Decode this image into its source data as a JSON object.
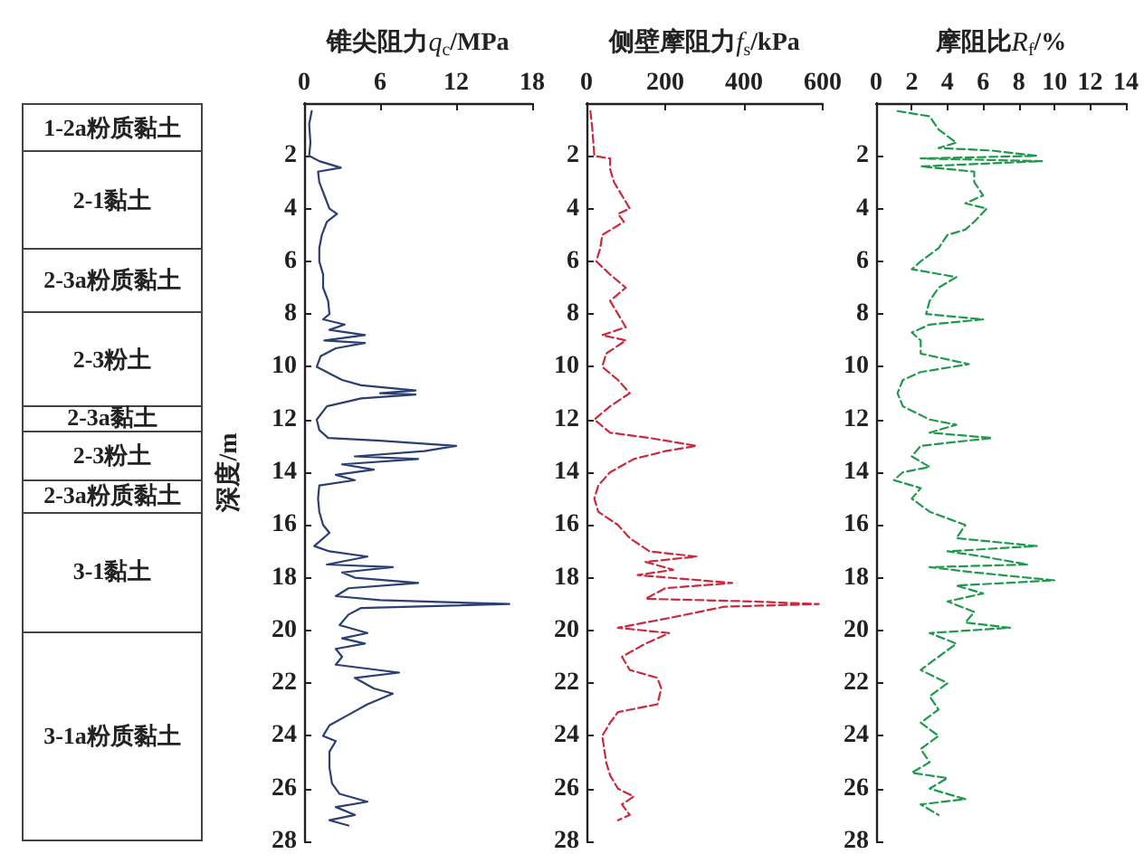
{
  "chart_data": [
    {
      "type": "other",
      "annotations": [
        "1-2a粉质黏土",
        "2-1黏土",
        "2-3a粉质黏土",
        "2-3粉土",
        "2-3a黏土",
        "2-3粉土",
        "2-3a粉质黏土",
        "3-1黏土",
        "3-1a粉质黏土"
      ]
    },
    {
      "type": "line",
      "orientation": "horizontal",
      "xlabel": "锥尖阻力q$_{c}$/MPa",
      "ylabel": "深度/m",
      "xlim": [
        0,
        18
      ],
      "xticks": [
        0,
        6,
        12,
        18
      ],
      "ylim": [
        28,
        0
      ],
      "yticks": [
        2,
        4,
        6,
        8,
        10,
        12,
        14,
        16,
        18,
        20,
        22,
        24,
        26,
        28
      ],
      "color": "#2b3f73",
      "line_style": "solid",
      "marker": "none",
      "grid": false,
      "x": [
        0.3,
        0.8,
        1.5,
        2.0,
        2.2,
        2.45,
        2.6,
        3.0,
        3.5,
        4.0,
        4.2,
        4.5,
        5.0,
        5.5,
        6.0,
        6.5,
        7.0,
        7.5,
        8.0,
        8.2,
        8.4,
        8.6,
        8.8,
        9.0,
        9.1,
        9.3,
        9.6,
        10.0,
        10.3,
        10.5,
        10.7,
        10.9,
        11.0,
        11.05,
        11.2,
        11.5,
        12.0,
        12.4,
        12.7,
        12.8,
        13.0,
        13.2,
        13.4,
        13.5,
        13.7,
        13.9,
        14.1,
        14.3,
        14.5,
        15.0,
        15.5,
        16.0,
        16.3,
        16.8,
        17.0,
        17.2,
        17.5,
        17.6,
        17.8,
        18.0,
        18.2,
        18.4,
        18.7,
        18.85,
        19.0,
        19.15,
        19.4,
        19.8,
        20.1,
        20.3,
        20.5,
        20.7,
        21.0,
        21.3,
        21.6,
        21.8,
        22.2,
        22.4,
        22.8,
        23.2,
        23.6,
        24.0,
        24.2,
        24.6,
        25.2,
        25.8,
        26.2,
        26.5,
        26.7,
        27.0,
        27.2,
        27.4
      ],
      "values": [
        0.6,
        0.4,
        0.5,
        0.4,
        1.2,
        2.9,
        1.1,
        1.2,
        1.6,
        2.0,
        2.6,
        1.8,
        1.4,
        1.2,
        1.2,
        1.5,
        1.5,
        1.9,
        2.0,
        1.5,
        3.2,
        2.0,
        4.8,
        1.6,
        4.8,
        2.5,
        1.3,
        1.0,
        2.2,
        3.0,
        4.5,
        8.8,
        6.0,
        8.8,
        4.5,
        1.8,
        1.0,
        1.2,
        1.9,
        6.0,
        12.0,
        9.5,
        4.0,
        9.0,
        3.0,
        5.5,
        2.5,
        4.0,
        1.2,
        1.1,
        1.2,
        1.5,
        2.0,
        0.8,
        2.0,
        5.0,
        1.8,
        7.0,
        3.0,
        4.0,
        9.0,
        3.5,
        2.5,
        6.0,
        16.2,
        4.5,
        3.5,
        2.8,
        5.0,
        3.0,
        4.8,
        2.5,
        3.0,
        2.5,
        7.5,
        4.0,
        5.5,
        7.0,
        5.0,
        3.5,
        2.0,
        1.5,
        2.5,
        2.0,
        2.0,
        2.2,
        2.8,
        5.0,
        2.5,
        4.0,
        2.0,
        3.5
      ]
    },
    {
      "type": "line",
      "orientation": "horizontal",
      "xlabel": "侧壁摩阻力f$_{s}$/kPa",
      "xlim": [
        0,
        600
      ],
      "xticks": [
        0,
        200,
        400,
        600
      ],
      "ylim": [
        28,
        0
      ],
      "yticks": [
        2,
        4,
        6,
        8,
        10,
        12,
        14,
        16,
        18,
        20,
        22,
        24,
        26,
        28
      ],
      "color": "#cc2a3c",
      "line_style": "dashed",
      "marker": "none",
      "grid": false,
      "x": [
        0.3,
        1.0,
        2.0,
        2.1,
        2.5,
        3.0,
        3.5,
        4.0,
        4.2,
        4.5,
        5.0,
        5.5,
        6.0,
        6.5,
        7.0,
        7.5,
        8.0,
        8.5,
        8.8,
        9.0,
        9.5,
        10.0,
        10.5,
        11.0,
        11.5,
        12.0,
        12.5,
        12.7,
        13.0,
        13.2,
        13.5,
        14.0,
        14.5,
        15.0,
        15.5,
        16.0,
        16.5,
        17.0,
        17.2,
        17.4,
        17.7,
        17.9,
        18.2,
        18.4,
        18.8,
        18.9,
        19.0,
        19.1,
        19.5,
        19.9,
        20.1,
        20.5,
        21.0,
        21.5,
        21.8,
        22.2,
        22.8,
        23.1,
        23.5,
        24.0,
        25.0,
        25.5,
        26.0,
        26.3,
        26.6,
        27.0,
        27.2
      ],
      "values": [
        10,
        15,
        20,
        60,
        60,
        70,
        90,
        110,
        80,
        95,
        40,
        35,
        25,
        60,
        100,
        60,
        80,
        100,
        40,
        100,
        50,
        40,
        80,
        110,
        60,
        20,
        60,
        160,
        280,
        200,
        120,
        60,
        30,
        20,
        30,
        80,
        110,
        160,
        280,
        150,
        220,
        130,
        370,
        200,
        150,
        420,
        590,
        350,
        220,
        80,
        210,
        150,
        90,
        110,
        180,
        190,
        180,
        80,
        60,
        40,
        50,
        60,
        80,
        120,
        90,
        110,
        80
      ]
    },
    {
      "type": "line",
      "orientation": "horizontal",
      "xlabel": "摩阻比R$_{f}$/%",
      "xlim": [
        0,
        14
      ],
      "xticks": [
        0,
        2,
        4,
        6,
        8,
        10,
        12,
        14
      ],
      "ylim": [
        28,
        0
      ],
      "yticks": [
        2,
        4,
        6,
        8,
        10,
        12,
        14,
        16,
        18,
        20,
        22,
        24,
        26,
        28
      ],
      "color": "#1f9a4c",
      "line_style": "dashed",
      "marker": "none",
      "grid": false,
      "x": [
        0.3,
        0.5,
        1.0,
        1.5,
        1.7,
        1.8,
        2.0,
        2.1,
        2.2,
        2.4,
        2.6,
        3.0,
        3.5,
        3.8,
        4.0,
        4.5,
        4.8,
        5.0,
        5.5,
        6.0,
        6.3,
        6.6,
        7.0,
        7.5,
        8.0,
        8.2,
        8.4,
        8.7,
        9.0,
        9.5,
        9.9,
        10.2,
        10.5,
        11.0,
        11.5,
        12.0,
        12.2,
        12.5,
        12.7,
        13.0,
        13.4,
        13.8,
        14.0,
        14.3,
        14.6,
        15.0,
        15.5,
        16.0,
        16.5,
        16.8,
        17.0,
        17.2,
        17.5,
        17.6,
        17.8,
        18.1,
        18.3,
        18.6,
        18.9,
        19.3,
        19.7,
        19.9,
        20.1,
        20.5,
        21.0,
        21.5,
        22.0,
        22.5,
        23.0,
        23.5,
        24.0,
        24.5,
        25.0,
        25.4,
        25.6,
        26.0,
        26.4,
        26.6,
        27.0
      ],
      "values": [
        1.2,
        3.0,
        3.5,
        4.5,
        3.5,
        6.5,
        9.0,
        2.5,
        9.3,
        2.5,
        5.5,
        5.5,
        6.0,
        5.0,
        6.2,
        5.5,
        5.0,
        4.0,
        3.5,
        2.5,
        2.0,
        4.5,
        3.5,
        3.0,
        2.8,
        6.0,
        3.0,
        2.0,
        2.5,
        2.5,
        5.2,
        2.5,
        1.5,
        1.2,
        1.5,
        3.0,
        4.5,
        3.0,
        6.5,
        2.5,
        2.0,
        3.0,
        1.5,
        1.0,
        2.5,
        2.0,
        3.0,
        5.0,
        4.5,
        9.0,
        4.0,
        6.0,
        8.5,
        3.0,
        5.5,
        10.0,
        4.5,
        6.0,
        4.0,
        5.5,
        5.0,
        7.5,
        3.0,
        4.5,
        3.5,
        2.5,
        4.0,
        3.0,
        3.5,
        2.5,
        3.5,
        2.5,
        3.0,
        2.0,
        4.0,
        3.0,
        5.0,
        2.5,
        3.5
      ]
    }
  ]
}
